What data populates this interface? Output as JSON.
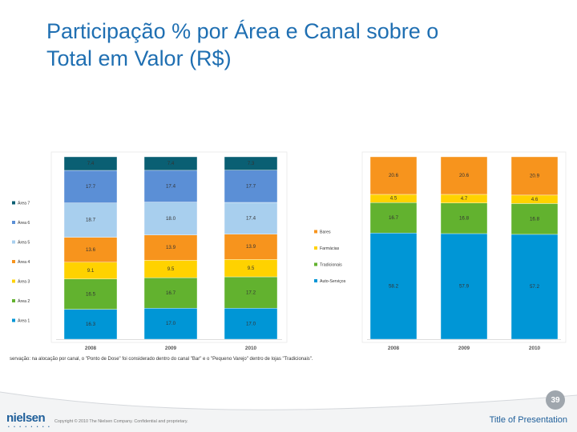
{
  "title": {
    "line1": "Participação % por Área e Canal sobre o",
    "line2": "Total em Valor (R$)"
  },
  "chart_data": [
    {
      "type": "bar",
      "stacked": true,
      "categories": [
        "2008",
        "2009",
        "2010"
      ],
      "ylim": [
        0,
        100
      ],
      "legend_position": "left",
      "series": [
        {
          "name": "Área 1",
          "color": "#0096d6",
          "values": [
            16.3,
            17.0,
            17.0
          ]
        },
        {
          "name": "Área 2",
          "color": "#62b22f",
          "values": [
            16.5,
            16.7,
            17.2
          ]
        },
        {
          "name": "Área 3",
          "color": "#ffd200",
          "values": [
            9.1,
            9.5,
            9.5
          ]
        },
        {
          "name": "Área 4",
          "color": "#f7941d",
          "values": [
            13.6,
            13.9,
            13.9
          ]
        },
        {
          "name": "Área 5",
          "color": "#a8cfee",
          "values": [
            18.7,
            18.0,
            17.4
          ]
        },
        {
          "name": "Área 6",
          "color": "#5b8fd6",
          "values": [
            17.7,
            17.4,
            17.7
          ]
        },
        {
          "name": "Área 7",
          "color": "#0a5f73",
          "values": [
            7.4,
            7.4,
            7.3
          ]
        }
      ]
    },
    {
      "type": "bar",
      "stacked": true,
      "categories": [
        "2008",
        "2009",
        "2010"
      ],
      "ylim": [
        0,
        100
      ],
      "legend_position": "left",
      "series": [
        {
          "name": "Auto-Serviços",
          "color": "#0096d6",
          "values": [
            58.2,
            57.9,
            57.2
          ]
        },
        {
          "name": "Tradicionais",
          "color": "#62b22f",
          "values": [
            16.7,
            16.8,
            16.8
          ]
        },
        {
          "name": "Farmácias",
          "color": "#ffd200",
          "values": [
            4.5,
            4.7,
            4.6
          ]
        },
        {
          "name": "Bares",
          "color": "#f7941d",
          "values": [
            20.6,
            20.6,
            20.9
          ]
        }
      ]
    }
  ],
  "note": "servação: na alocação por canal, o \"Ponto de Dose\" foi considerado dentro do canal \"Bar\" e o \"Pequeno Varejo\" dentro de lojas \"Tradicionais\".",
  "footer": {
    "logo": "nielsen",
    "logo_dots": "• • • • • • • •",
    "copyright": "Copyright © 2010 The Nielsen Company. Confidential and proprietary.",
    "page_number": "39",
    "presentation_title": "Title of Presentation"
  }
}
